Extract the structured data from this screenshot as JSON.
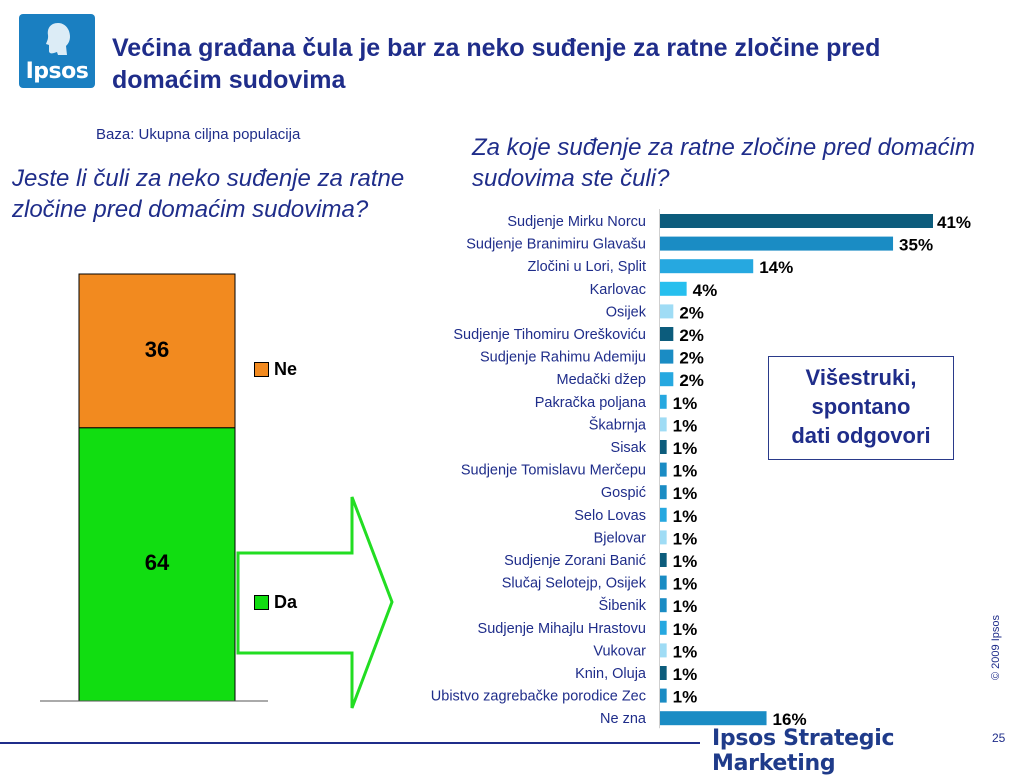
{
  "logo": {
    "text": "Ipsos"
  },
  "title": "Većina građana čula je bar za neko suđenje za ratne zločine pred domaćim sudovima",
  "base_label": "Baza: Ukupna ciljna populacija",
  "question_left": "Jeste li čuli za neko suđenje za ratne zločine pred domaćim sudovima?",
  "question_right": "Za koje suđenje za ratne zločine pred domaćim sudovima ste čuli?",
  "note": [
    "Višestruki,",
    "spontano",
    "dati odgovori"
  ],
  "copyright": "© 2009 Ipsos",
  "footer_brand": "Ipsos Strategic Marketing",
  "page_number": "25",
  "colors": {
    "title": "#1f2d8a",
    "logo": "#1a7fc1",
    "ne": "#f28a1f",
    "da": "#11dd11",
    "arrow": "#22dd22",
    "bar_dark": "#0c5c7c",
    "bar_mid": "#1a8cc4",
    "bar_bright": "#26a8e0",
    "bar_light": "#9fdcf5"
  },
  "chart_data": [
    {
      "type": "bar",
      "stacked": true,
      "categories": [
        ""
      ],
      "series": [
        {
          "name": "Da",
          "values": [
            64
          ],
          "color": "#11dd11"
        },
        {
          "name": "Ne",
          "values": [
            36
          ],
          "color": "#f28a1f"
        }
      ],
      "ylim": [
        0,
        100
      ],
      "legend": "right"
    },
    {
      "type": "bar",
      "orientation": "horizontal",
      "categories": [
        "Sudjenje Mirku Norcu",
        "Sudjenje Branimiru Glavašu",
        "Zločini u Lori, Split",
        "Karlovac",
        "Osijek",
        "Sudjenje Tihomiru Oreškoviću",
        "Sudjenje Rahimu Ademiju",
        "Medački džep",
        "Pakračka poljana",
        "Škabrnja",
        "Sisak",
        "Sudjenje Tomislavu Merčepu",
        "Gospić",
        "Selo Lovas",
        "Bjelovar",
        "Sudjenje Zorani Banić",
        "Slučaj Selotejp, Osijek",
        "Šibenik",
        "Sudjenje Mihajlu Hrastovu",
        "Vukovar",
        "Knin, Oluja",
        "Ubistvo zagrebačke porodice Zec",
        "Ne zna"
      ],
      "values": [
        41,
        35,
        14,
        4,
        2,
        2,
        2,
        2,
        1,
        1,
        1,
        1,
        1,
        1,
        1,
        1,
        1,
        1,
        1,
        1,
        1,
        1,
        16
      ],
      "value_labels": [
        "41%",
        "35%",
        "14%",
        "4%",
        "2%",
        "2%",
        "2%",
        "2%",
        "1%",
        "1%",
        "1%",
        "1%",
        "1%",
        "1%",
        "1%",
        "1%",
        "1%",
        "1%",
        "1%",
        "1%",
        "1%",
        "1%",
        "16%"
      ],
      "bar_colors": [
        "#0c5c7c",
        "#1a8cc4",
        "#26a8e0",
        "#26bfee",
        "#9fdcf5",
        "#0c5c7c",
        "#1a8cc4",
        "#26a8e0",
        "#26a8e0",
        "#9fdcf5",
        "#0c5c7c",
        "#1a8cc4",
        "#1a8cc4",
        "#26a8e0",
        "#9fdcf5",
        "#0c5c7c",
        "#1a8cc4",
        "#1a8cc4",
        "#26a8e0",
        "#9fdcf5",
        "#0c5c7c",
        "#1a8cc4",
        "#1a8cc4"
      ],
      "xlim": [
        0,
        45
      ]
    }
  ]
}
